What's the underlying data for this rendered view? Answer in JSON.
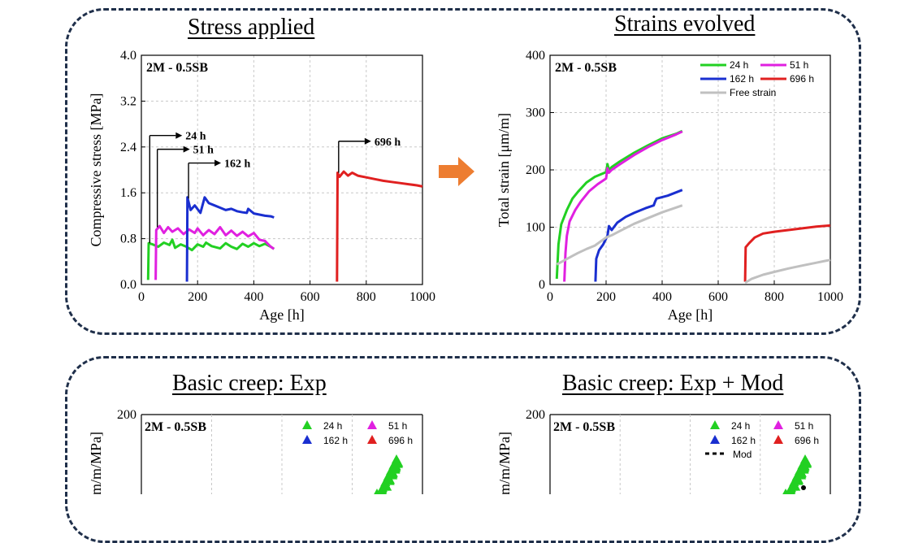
{
  "headings": {
    "stress": "Stress applied",
    "strains": "Strains evolved",
    "basic_exp": "Basic creep: Exp",
    "basic_mod": "Basic creep: Exp + Mod"
  },
  "colors": {
    "h24": "#22d022",
    "h51": "#e020e0",
    "h162": "#1a2fd0",
    "h696": "#e02020",
    "free": "#c0c0c0",
    "panel_border": "#1f2f4a",
    "arrow": "#ed7d31"
  },
  "chart_data": [
    {
      "type": "line",
      "label": "2M - 0.5SB",
      "xlabel": "Age [h]",
      "ylabel": "Compressive stress [MPa]",
      "xlim": [
        0,
        1000
      ],
      "ylim": [
        0,
        4.0
      ],
      "xticks": [
        0,
        200,
        400,
        600,
        800,
        1000
      ],
      "xtick_labels": [
        "0",
        "200",
        "400",
        "600",
        "800",
        "1000"
      ],
      "yticks": [
        0,
        0.8,
        1.6,
        2.4,
        3.2,
        4.0
      ],
      "ytick_labels": [
        "0.0",
        "0.8",
        "1.6",
        "2.4",
        "3.2",
        "4.0"
      ],
      "grid": true,
      "annotations": [
        {
          "text": "24 h",
          "x": 24,
          "y": 2.6
        },
        {
          "text": "51 h",
          "x": 51,
          "y": 2.36
        },
        {
          "text": "162 h",
          "x": 162,
          "y": 2.12
        },
        {
          "text": "696 h",
          "x": 696,
          "y": 2.5
        }
      ],
      "series": [
        {
          "name": "24 h",
          "color_key": "h24",
          "x": [
            24,
            26,
            40,
            60,
            80,
            100,
            110,
            120,
            140,
            160,
            180,
            200,
            220,
            230,
            250,
            280,
            300,
            320,
            340,
            360,
            380,
            400,
            420,
            440,
            460,
            472
          ],
          "y": [
            0.08,
            0.72,
            0.7,
            0.66,
            0.73,
            0.69,
            0.78,
            0.64,
            0.7,
            0.66,
            0.6,
            0.7,
            0.66,
            0.73,
            0.67,
            0.63,
            0.72,
            0.66,
            0.62,
            0.71,
            0.66,
            0.72,
            0.67,
            0.71,
            0.66,
            0.62
          ]
        },
        {
          "name": "51 h",
          "color_key": "h51",
          "x": [
            51,
            53,
            65,
            80,
            95,
            110,
            130,
            150,
            170,
            190,
            200,
            220,
            240,
            260,
            280,
            300,
            320,
            340,
            360,
            380,
            400,
            420,
            440,
            460,
            472
          ],
          "y": [
            0.08,
            0.95,
            1.02,
            0.9,
            1.0,
            0.92,
            0.98,
            0.88,
            0.96,
            0.9,
            0.98,
            0.86,
            0.95,
            0.88,
            1.0,
            0.86,
            0.94,
            0.85,
            0.92,
            0.84,
            0.9,
            0.78,
            0.76,
            0.66,
            0.62
          ]
        },
        {
          "name": "162 h",
          "color_key": "h162",
          "x": [
            162,
            164,
            175,
            190,
            210,
            225,
            240,
            260,
            280,
            300,
            320,
            340,
            360,
            375,
            380,
            400,
            420,
            440,
            460,
            472
          ],
          "y": [
            0.05,
            1.52,
            1.3,
            1.38,
            1.25,
            1.52,
            1.42,
            1.38,
            1.34,
            1.3,
            1.32,
            1.28,
            1.26,
            1.25,
            1.32,
            1.24,
            1.22,
            1.2,
            1.19,
            1.17
          ]
        },
        {
          "name": "696 h",
          "color_key": "h696",
          "x": [
            696,
            698,
            705,
            720,
            735,
            750,
            770,
            800,
            830,
            860,
            890,
            920,
            950,
            980,
            1000
          ],
          "y": [
            0.05,
            1.95,
            1.88,
            1.97,
            1.9,
            1.95,
            1.9,
            1.87,
            1.84,
            1.81,
            1.79,
            1.77,
            1.75,
            1.73,
            1.71
          ]
        }
      ]
    },
    {
      "type": "line",
      "label": "2M - 0.5SB",
      "xlabel": "Age [h]",
      "ylabel": "Total strain [μm/m]",
      "xlim": [
        0,
        1000
      ],
      "ylim": [
        0,
        400
      ],
      "xticks": [
        0,
        200,
        400,
        600,
        800,
        1000
      ],
      "xtick_labels": [
        "0",
        "200",
        "400",
        "600",
        "800",
        "1000"
      ],
      "yticks": [
        0,
        100,
        200,
        300,
        400
      ],
      "ytick_labels": [
        "0",
        "100",
        "200",
        "300",
        "400"
      ],
      "grid": true,
      "legend": {
        "placement": "top-right",
        "entries": [
          "24 h",
          "51 h",
          "162 h",
          "696 h",
          "Free strain"
        ]
      },
      "series": [
        {
          "name": "24 h",
          "color_key": "h24",
          "x": [
            24,
            30,
            40,
            60,
            80,
            100,
            130,
            160,
            200,
            205,
            210,
            220,
            250,
            300,
            350,
            400,
            450,
            472
          ],
          "y": [
            10,
            70,
            105,
            130,
            150,
            162,
            178,
            188,
            196,
            210,
            200,
            205,
            215,
            230,
            243,
            255,
            263,
            268
          ]
        },
        {
          "name": "51 h",
          "color_key": "h51",
          "x": [
            51,
            55,
            60,
            70,
            90,
            110,
            140,
            170,
            200,
            205,
            210,
            220,
            250,
            300,
            350,
            400,
            450,
            472
          ],
          "y": [
            5,
            55,
            85,
            110,
            130,
            145,
            163,
            175,
            185,
            203,
            195,
            200,
            210,
            226,
            240,
            252,
            262,
            267
          ]
        },
        {
          "name": "162 h",
          "color_key": "h162",
          "x": [
            162,
            165,
            175,
            190,
            205,
            210,
            220,
            240,
            270,
            300,
            340,
            370,
            375,
            380,
            420,
            472
          ],
          "y": [
            5,
            45,
            60,
            70,
            85,
            102,
            95,
            108,
            118,
            125,
            133,
            138,
            145,
            150,
            155,
            165
          ]
        },
        {
          "name": "696 h",
          "color_key": "h696",
          "x": [
            696,
            698,
            710,
            730,
            760,
            800,
            850,
            900,
            950,
            1000
          ],
          "y": [
            5,
            65,
            72,
            82,
            89,
            92,
            95,
            98,
            101,
            103
          ]
        },
        {
          "name": "Free strain",
          "color_key": "free",
          "x": [
            24,
            50,
            80,
            100,
            130,
            160,
            180,
            200,
            220,
            260,
            300,
            350,
            400,
            472
          ],
          "y": [
            35,
            42,
            50,
            55,
            62,
            68,
            75,
            82,
            86,
            96,
            106,
            116,
            126,
            138
          ]
        },
        {
          "name": "Free strain",
          "color_key": "free",
          "x": [
            696,
            720,
            760,
            800,
            850,
            900,
            950,
            1000
          ],
          "y": [
            3,
            10,
            17,
            22,
            28,
            33,
            38,
            43
          ]
        }
      ]
    },
    {
      "type": "scatter",
      "label": "2M - 0.5SB",
      "ylabel": "m/m/MPa]",
      "ylim_top": 200,
      "ytick_top_label": "200",
      "legend": {
        "placement": "top-right",
        "entries": [
          "24 h",
          "51 h",
          "162 h",
          "696 h"
        ]
      }
    },
    {
      "type": "scatter",
      "label": "2M - 0.5SB",
      "ylabel": "m/m/MPa]",
      "ylim_top": 200,
      "ytick_top_label": "200",
      "legend": {
        "placement": "top-right",
        "entries": [
          "24 h",
          "51 h",
          "162 h",
          "696 h",
          "Mod"
        ]
      }
    }
  ]
}
